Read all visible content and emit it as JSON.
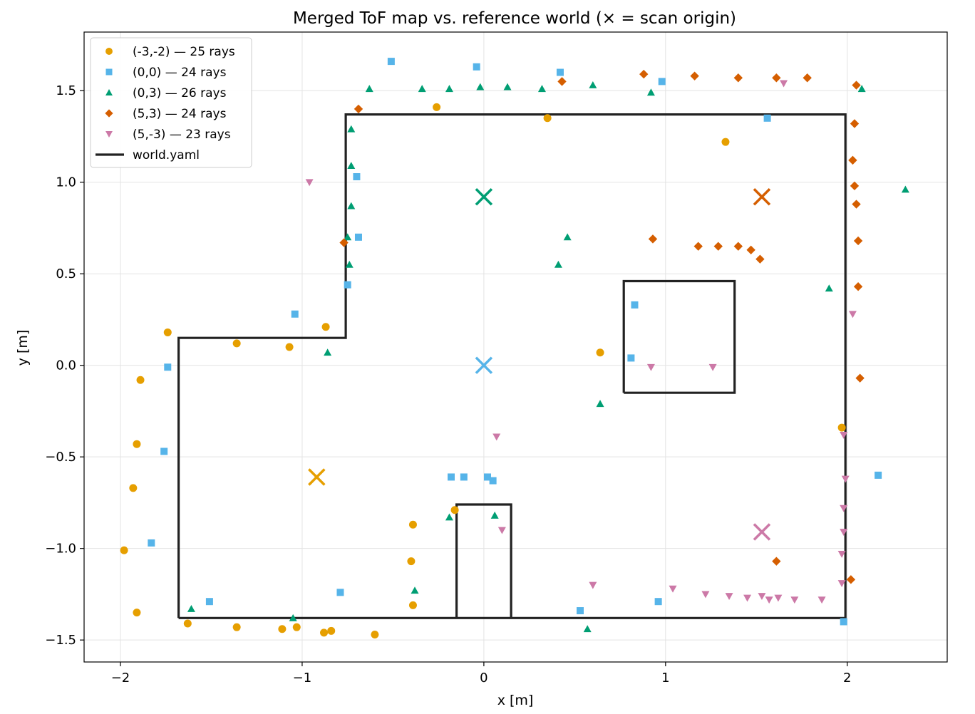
{
  "chart_data": {
    "type": "scatter",
    "title": "Merged ToF map vs. reference world  (× = scan origin)",
    "xlabel": "x [m]",
    "ylabel": "y [m]",
    "xlim": [
      -2.2,
      2.55
    ],
    "ylim": [
      -1.62,
      1.82
    ],
    "xticks": [
      -2,
      -1,
      0,
      1,
      2
    ],
    "xtick_labels": [
      "−2",
      "−1",
      "0",
      "1",
      "2"
    ],
    "yticks": [
      -1.5,
      -1.0,
      -0.5,
      0.0,
      0.5,
      1.0,
      1.5
    ],
    "ytick_labels": [
      "−1.5",
      "−1.0",
      "−0.5",
      "0.0",
      "0.5",
      "1.0",
      "1.5"
    ],
    "grid": true,
    "legend_position": "top-left",
    "series": [
      {
        "name": "(-3,-2) — 25 rays",
        "marker": "circle",
        "color": "#E69F00",
        "origin": [
          -0.92,
          -0.61
        ],
        "points": [
          [
            -1.74,
            0.18
          ],
          [
            -1.89,
            -0.08
          ],
          [
            -1.91,
            -0.43
          ],
          [
            -1.93,
            -0.67
          ],
          [
            -1.98,
            -1.01
          ],
          [
            -1.91,
            -1.35
          ],
          [
            -1.63,
            -1.41
          ],
          [
            -1.36,
            0.12
          ],
          [
            -1.07,
            0.1
          ],
          [
            -0.87,
            0.21
          ],
          [
            -1.36,
            -1.43
          ],
          [
            -1.11,
            -1.44
          ],
          [
            -1.03,
            -1.43
          ],
          [
            -0.88,
            -1.46
          ],
          [
            -0.84,
            -1.45
          ],
          [
            -0.6,
            -1.47
          ],
          [
            -0.39,
            -1.31
          ],
          [
            -0.4,
            -1.07
          ],
          [
            -0.39,
            -0.87
          ],
          [
            -0.16,
            -0.79
          ],
          [
            -0.26,
            1.41
          ],
          [
            0.35,
            1.35
          ],
          [
            0.64,
            0.07
          ],
          [
            1.33,
            1.22
          ],
          [
            1.97,
            -0.34
          ]
        ]
      },
      {
        "name": "(0,0) — 24 rays",
        "marker": "square",
        "color": "#56B4E9",
        "origin": [
          0.0,
          0.0
        ],
        "points": [
          [
            -0.51,
            1.66
          ],
          [
            -0.04,
            1.63
          ],
          [
            0.42,
            1.6
          ],
          [
            0.98,
            1.55
          ],
          [
            1.56,
            1.35
          ],
          [
            -0.7,
            1.03
          ],
          [
            -0.69,
            0.7
          ],
          [
            -0.75,
            0.44
          ],
          [
            -1.04,
            0.28
          ],
          [
            -1.74,
            -0.01
          ],
          [
            -1.76,
            -0.47
          ],
          [
            -1.83,
            -0.97
          ],
          [
            -1.51,
            -1.29
          ],
          [
            -0.79,
            -1.24
          ],
          [
            -0.18,
            -0.61
          ],
          [
            -0.11,
            -0.61
          ],
          [
            0.02,
            -0.61
          ],
          [
            0.05,
            -0.63
          ],
          [
            0.53,
            -1.34
          ],
          [
            0.96,
            -1.29
          ],
          [
            1.98,
            -1.4
          ],
          [
            2.17,
            -0.6
          ],
          [
            0.81,
            0.04
          ],
          [
            0.83,
            0.33
          ]
        ]
      },
      {
        "name": "(0,3) — 26 rays",
        "marker": "triangle-up",
        "color": "#009E73",
        "origin": [
          0.0,
          0.92
        ],
        "points": [
          [
            -0.63,
            1.51
          ],
          [
            -0.34,
            1.51
          ],
          [
            -0.19,
            1.51
          ],
          [
            -0.02,
            1.52
          ],
          [
            0.13,
            1.52
          ],
          [
            0.32,
            1.51
          ],
          [
            0.6,
            1.53
          ],
          [
            0.92,
            1.49
          ],
          [
            2.08,
            1.51
          ],
          [
            -0.73,
            1.29
          ],
          [
            -0.73,
            1.09
          ],
          [
            -0.73,
            0.87
          ],
          [
            -0.75,
            0.7
          ],
          [
            -0.74,
            0.55
          ],
          [
            -0.86,
            0.07
          ],
          [
            0.46,
            0.7
          ],
          [
            0.41,
            0.55
          ],
          [
            1.9,
            0.42
          ],
          [
            2.32,
            0.96
          ],
          [
            0.64,
            -0.21
          ],
          [
            -0.19,
            -0.83
          ],
          [
            0.06,
            -0.82
          ],
          [
            -0.38,
            -1.23
          ],
          [
            -1.61,
            -1.33
          ],
          [
            -1.05,
            -1.38
          ],
          [
            0.57,
            -1.44
          ]
        ]
      },
      {
        "name": "(5,3) — 24 rays",
        "marker": "diamond",
        "color": "#D55E00",
        "origin": [
          1.53,
          0.92
        ],
        "points": [
          [
            -0.69,
            1.4
          ],
          [
            0.43,
            1.55
          ],
          [
            0.88,
            1.59
          ],
          [
            1.16,
            1.58
          ],
          [
            1.4,
            1.57
          ],
          [
            1.61,
            1.57
          ],
          [
            1.78,
            1.57
          ],
          [
            2.05,
            1.53
          ],
          [
            2.04,
            1.32
          ],
          [
            2.03,
            1.12
          ],
          [
            2.04,
            0.98
          ],
          [
            2.05,
            0.88
          ],
          [
            2.06,
            0.68
          ],
          [
            2.06,
            0.43
          ],
          [
            2.07,
            -0.07
          ],
          [
            2.02,
            -1.17
          ],
          [
            1.61,
            -1.07
          ],
          [
            0.93,
            0.69
          ],
          [
            1.18,
            0.65
          ],
          [
            1.29,
            0.65
          ],
          [
            1.4,
            0.65
          ],
          [
            1.47,
            0.63
          ],
          [
            1.52,
            0.58
          ],
          [
            -0.77,
            0.67
          ]
        ]
      },
      {
        "name": "(5,-3) — 23 rays",
        "marker": "triangle-down",
        "color": "#CC79A7",
        "origin": [
          1.53,
          -0.91
        ],
        "points": [
          [
            -0.96,
            1.0
          ],
          [
            1.65,
            1.54
          ],
          [
            2.03,
            0.28
          ],
          [
            0.92,
            -0.01
          ],
          [
            1.26,
            -0.01
          ],
          [
            0.07,
            -0.39
          ],
          [
            0.1,
            -0.9
          ],
          [
            1.98,
            -0.38
          ],
          [
            1.99,
            -0.62
          ],
          [
            1.98,
            -0.78
          ],
          [
            1.98,
            -0.91
          ],
          [
            1.97,
            -1.03
          ],
          [
            1.97,
            -1.19
          ],
          [
            0.6,
            -1.2
          ],
          [
            1.04,
            -1.22
          ],
          [
            1.22,
            -1.25
          ],
          [
            1.35,
            -1.26
          ],
          [
            1.45,
            -1.27
          ],
          [
            1.53,
            -1.26
          ],
          [
            1.57,
            -1.28
          ],
          [
            1.62,
            -1.27
          ],
          [
            1.71,
            -1.28
          ],
          [
            1.86,
            -1.28
          ]
        ]
      }
    ],
    "world": {
      "name": "world.yaml",
      "color": "#222222",
      "outline": [
        [
          -1.68,
          -1.38
        ],
        [
          -1.68,
          0.15
        ],
        [
          -0.76,
          0.15
        ],
        [
          -0.76,
          1.37
        ],
        [
          1.99,
          1.37
        ],
        [
          1.99,
          -1.38
        ],
        [
          -1.68,
          -1.38
        ]
      ],
      "obstacles": [
        [
          [
            0.77,
            -0.15
          ],
          [
            1.38,
            -0.15
          ],
          [
            1.38,
            0.46
          ],
          [
            0.77,
            0.46
          ],
          [
            0.77,
            -0.15
          ]
        ],
        [
          [
            -0.15,
            -1.38
          ],
          [
            -0.15,
            -0.76
          ],
          [
            0.15,
            -0.76
          ],
          [
            0.15,
            -1.38
          ]
        ]
      ]
    }
  }
}
